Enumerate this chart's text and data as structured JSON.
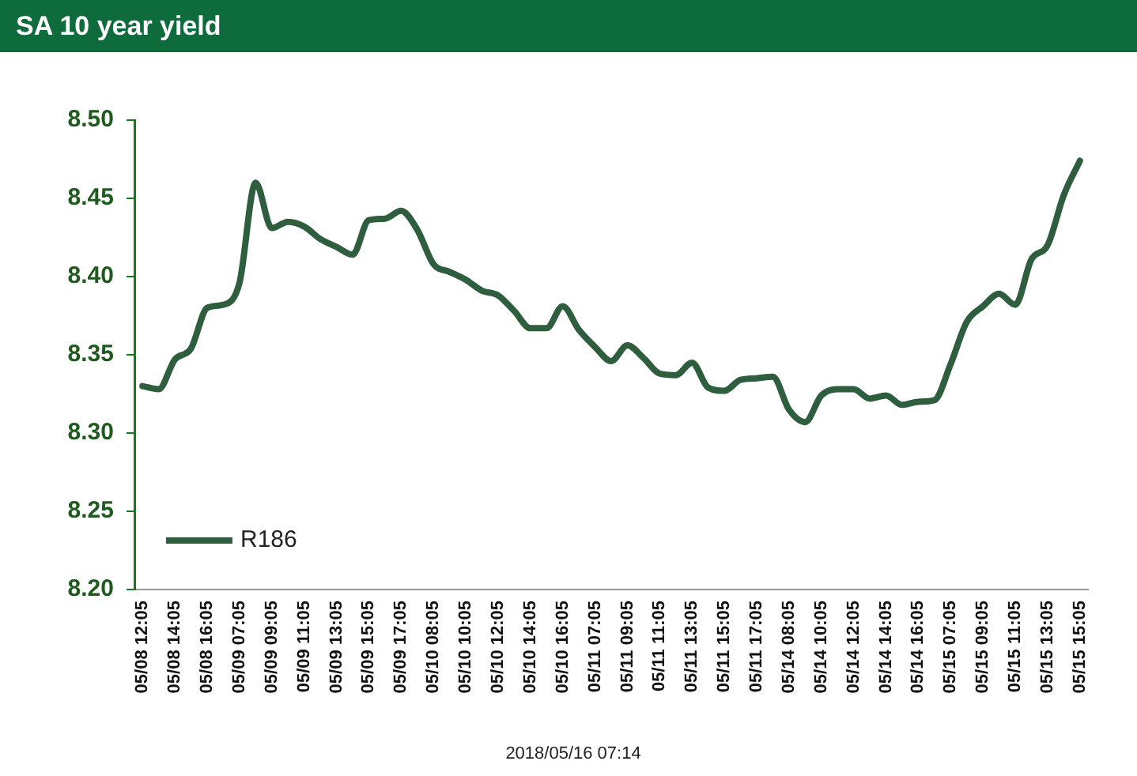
{
  "chart_data": {
    "type": "line",
    "title": "SA 10 year yield",
    "categories": [
      "05/08 12:05",
      null,
      "05/08 14:05",
      null,
      "05/08 16:05",
      null,
      "05/09 07:05",
      null,
      "05/09 09:05",
      null,
      "05/09 11:05",
      null,
      "05/09 13:05",
      null,
      "05/09 15:05",
      null,
      "05/09 17:05",
      null,
      "05/10 08:05",
      null,
      "05/10 10:05",
      null,
      "05/10 12:05",
      null,
      "05/10 14:05",
      null,
      "05/10 16:05",
      null,
      "05/11 07:05",
      null,
      "05/11 09:05",
      null,
      "05/11 11:05",
      null,
      "05/11 13:05",
      null,
      "05/11 15:05",
      null,
      "05/11 17:05",
      null,
      "05/14 08:05",
      null,
      "05/14 10:05",
      null,
      "05/14 12:05",
      null,
      "05/14 14:05",
      null,
      "05/14 16:05",
      null,
      "05/15 07:05",
      null,
      "05/15 09:05",
      null,
      "05/15 11:05",
      null,
      "05/15 13:05",
      null,
      "05/15 15:05"
    ],
    "series": [
      {
        "name": "R186",
        "color": "#2e5e3e",
        "values": [
          8.33,
          8.328,
          8.347,
          8.354,
          8.38,
          8.382,
          8.396,
          8.46,
          8.431,
          8.435,
          8.432,
          8.424,
          8.419,
          8.414,
          8.436,
          8.437,
          8.442,
          8.43,
          8.408,
          8.403,
          8.398,
          8.391,
          8.388,
          8.378,
          8.367,
          8.367,
          8.381,
          8.366,
          8.355,
          8.346,
          8.356,
          8.348,
          8.338,
          8.337,
          8.345,
          8.329,
          8.327,
          8.334,
          8.335,
          8.336,
          8.315,
          8.307,
          8.324,
          8.328,
          8.328,
          8.322,
          8.324,
          8.318,
          8.32,
          8.321,
          8.344,
          8.371,
          8.381,
          8.389,
          8.382,
          8.411,
          8.42,
          8.452,
          8.474
        ]
      }
    ],
    "ylim": [
      8.2,
      8.5
    ],
    "yticks": [
      {
        "value": 8.2,
        "label": "8.20"
      },
      {
        "value": 8.25,
        "label": "8.25"
      },
      {
        "value": 8.3,
        "label": "8.30"
      },
      {
        "value": 8.35,
        "label": "8.35"
      },
      {
        "value": 8.4,
        "label": "8.40"
      },
      {
        "value": 8.45,
        "label": "8.45"
      },
      {
        "value": 8.5,
        "label": "8.50"
      }
    ],
    "grid": false,
    "legend": "bottom left",
    "marker": "none",
    "line_style": "solid",
    "annotations": [
      "2018/05/16 07:14"
    ]
  }
}
